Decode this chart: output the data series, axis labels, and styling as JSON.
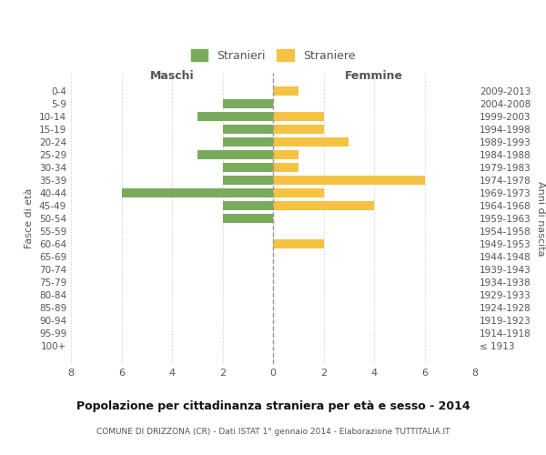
{
  "age_groups": [
    "100+",
    "95-99",
    "90-94",
    "85-89",
    "80-84",
    "75-79",
    "70-74",
    "65-69",
    "60-64",
    "55-59",
    "50-54",
    "45-49",
    "40-44",
    "35-39",
    "30-34",
    "25-29",
    "20-24",
    "15-19",
    "10-14",
    "5-9",
    "0-4"
  ],
  "birth_years": [
    "≤ 1913",
    "1914-1918",
    "1919-1923",
    "1924-1928",
    "1929-1933",
    "1934-1938",
    "1939-1943",
    "1944-1948",
    "1949-1953",
    "1954-1958",
    "1959-1963",
    "1964-1968",
    "1969-1973",
    "1974-1978",
    "1979-1983",
    "1984-1988",
    "1989-1993",
    "1994-1998",
    "1999-2003",
    "2004-2008",
    "2009-2013"
  ],
  "maschi": [
    0,
    0,
    0,
    0,
    0,
    0,
    0,
    0,
    0,
    0,
    2,
    2,
    6,
    2,
    2,
    3,
    2,
    2,
    3,
    2,
    0
  ],
  "femmine": [
    0,
    0,
    0,
    0,
    0,
    0,
    0,
    0,
    2,
    0,
    0,
    4,
    2,
    6,
    1,
    1,
    3,
    2,
    2,
    0,
    1
  ],
  "bar_color_maschi": "#7aaa5b",
  "bar_color_femmine": "#f5c242",
  "title": "Popolazione per cittadinanza straniera per età e sesso - 2014",
  "subtitle": "COMUNE DI DRIZZONA (CR) - Dati ISTAT 1° gennaio 2014 - Elaborazione TUTTITALIA.IT",
  "xlabel_left": "Maschi",
  "xlabel_right": "Femmine",
  "ylabel_left": "Fasce di età",
  "ylabel_right": "Anni di nascita",
  "legend_maschi": "Stranieri",
  "legend_femmine": "Straniere",
  "xlim": 8,
  "background_color": "#ffffff",
  "grid_color": "#cccccc"
}
